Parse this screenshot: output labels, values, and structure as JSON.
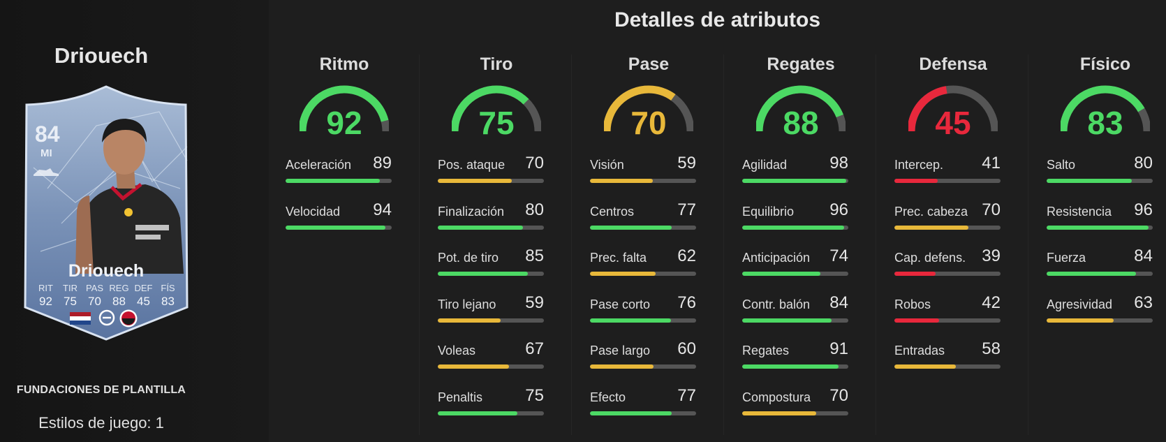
{
  "player": {
    "name": "Driouech",
    "overall": "84",
    "position": "MI",
    "card_name": "Driouech",
    "card_stats": [
      {
        "label": "RIT",
        "value": "92"
      },
      {
        "label": "TIR",
        "value": "75"
      },
      {
        "label": "PAS",
        "value": "70"
      },
      {
        "label": "REG",
        "value": "88"
      },
      {
        "label": "DEF",
        "value": "45"
      },
      {
        "label": "FÍS",
        "value": "83"
      }
    ],
    "squad_label": "FUNDACIONES DE PLANTILLA",
    "playstyles": "Estilos de juego: 1"
  },
  "title": "Detalles de atributos",
  "colors": {
    "green": "#4cd964",
    "yellow": "#e8b83a",
    "red": "#e8283c",
    "track": "#555555"
  },
  "categories": [
    {
      "name": "Ritmo",
      "value": "92",
      "color": "green",
      "attributes": [
        {
          "label": "Aceleración",
          "value": "89",
          "color": "green"
        },
        {
          "label": "Velocidad",
          "value": "94",
          "color": "green"
        }
      ]
    },
    {
      "name": "Tiro",
      "value": "75",
      "color": "green",
      "attributes": [
        {
          "label": "Pos. ataque",
          "value": "70",
          "color": "yellow"
        },
        {
          "label": "Finalización",
          "value": "80",
          "color": "green"
        },
        {
          "label": "Pot. de tiro",
          "value": "85",
          "color": "green"
        },
        {
          "label": "Tiro lejano",
          "value": "59",
          "color": "yellow"
        },
        {
          "label": "Voleas",
          "value": "67",
          "color": "yellow"
        },
        {
          "label": "Penaltis",
          "value": "75",
          "color": "green"
        }
      ]
    },
    {
      "name": "Pase",
      "value": "70",
      "color": "yellow",
      "attributes": [
        {
          "label": "Visión",
          "value": "59",
          "color": "yellow"
        },
        {
          "label": "Centros",
          "value": "77",
          "color": "green"
        },
        {
          "label": "Prec. falta",
          "value": "62",
          "color": "yellow"
        },
        {
          "label": "Pase corto",
          "value": "76",
          "color": "green"
        },
        {
          "label": "Pase largo",
          "value": "60",
          "color": "yellow"
        },
        {
          "label": "Efecto",
          "value": "77",
          "color": "green"
        }
      ]
    },
    {
      "name": "Regates",
      "value": "88",
      "color": "green",
      "attributes": [
        {
          "label": "Agilidad",
          "value": "98",
          "color": "green"
        },
        {
          "label": "Equilibrio",
          "value": "96",
          "color": "green"
        },
        {
          "label": "Anticipación",
          "value": "74",
          "color": "green"
        },
        {
          "label": "Contr. balón",
          "value": "84",
          "color": "green"
        },
        {
          "label": "Regates",
          "value": "91",
          "color": "green"
        },
        {
          "label": "Compostura",
          "value": "70",
          "color": "yellow"
        }
      ]
    },
    {
      "name": "Defensa",
      "value": "45",
      "color": "red",
      "attributes": [
        {
          "label": "Intercep.",
          "value": "41",
          "color": "red"
        },
        {
          "label": "Prec. cabeza",
          "value": "70",
          "color": "yellow"
        },
        {
          "label": "Cap. defens.",
          "value": "39",
          "color": "red"
        },
        {
          "label": "Robos",
          "value": "42",
          "color": "red"
        },
        {
          "label": "Entradas",
          "value": "58",
          "color": "yellow"
        }
      ]
    },
    {
      "name": "Físico",
      "value": "83",
      "color": "green",
      "attributes": [
        {
          "label": "Salto",
          "value": "80",
          "color": "green"
        },
        {
          "label": "Resistencia",
          "value": "96",
          "color": "green"
        },
        {
          "label": "Fuerza",
          "value": "84",
          "color": "green"
        },
        {
          "label": "Agresividad",
          "value": "63",
          "color": "yellow"
        }
      ]
    }
  ]
}
